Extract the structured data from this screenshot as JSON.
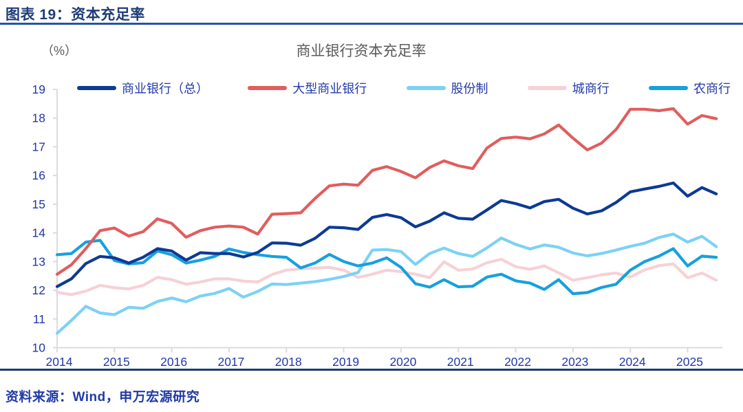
{
  "header": {
    "title": "图表 19：资本充足率"
  },
  "chart": {
    "title": "商业银行资本充足率",
    "unit_label": "（%）"
  },
  "footer": {
    "source": "资料来源：Wind，申万宏源研究"
  },
  "chart_data": {
    "type": "line",
    "title": "商业银行资本充足率",
    "unit": "%",
    "x_freq": "quarterly",
    "legend_position": "top",
    "grid": false,
    "ylim": [
      10,
      19
    ],
    "y_ticks": [
      "10",
      "11",
      "12",
      "13",
      "14",
      "15",
      "16",
      "17",
      "18",
      "19"
    ],
    "x_tick_labels": [
      "2014",
      "2015",
      "2016",
      "2017",
      "2018",
      "2019",
      "2020",
      "2021",
      "2022",
      "2023",
      "2024",
      "2025"
    ],
    "x": [
      "2014Q1",
      "2014Q2",
      "2014Q3",
      "2014Q4",
      "2015Q1",
      "2015Q2",
      "2015Q3",
      "2015Q4",
      "2016Q1",
      "2016Q2",
      "2016Q3",
      "2016Q4",
      "2017Q1",
      "2017Q2",
      "2017Q3",
      "2017Q4",
      "2018Q1",
      "2018Q2",
      "2018Q3",
      "2018Q4",
      "2019Q1",
      "2019Q2",
      "2019Q3",
      "2019Q4",
      "2020Q1",
      "2020Q2",
      "2020Q3",
      "2020Q4",
      "2021Q1",
      "2021Q2",
      "2021Q3",
      "2021Q4",
      "2022Q1",
      "2022Q2",
      "2022Q3",
      "2022Q4",
      "2023Q1",
      "2023Q2",
      "2023Q3",
      "2023Q4",
      "2024Q1",
      "2024Q2",
      "2024Q3",
      "2024Q4",
      "2025Q1",
      "2025Q2",
      "2025Q3"
    ],
    "series": [
      {
        "id": "total",
        "name": "商业银行（总）",
        "color": "#0C3A94",
        "values": [
          12.13,
          12.4,
          12.93,
          13.18,
          13.13,
          12.95,
          13.15,
          13.45,
          13.37,
          13.05,
          13.31,
          13.28,
          13.28,
          13.16,
          13.32,
          13.65,
          13.64,
          13.57,
          13.81,
          14.2,
          14.18,
          14.12,
          14.54,
          14.64,
          14.53,
          14.21,
          14.41,
          14.7,
          14.51,
          14.48,
          14.8,
          15.13,
          15.02,
          14.87,
          15.09,
          15.17,
          14.86,
          14.66,
          14.77,
          15.06,
          15.43,
          15.53,
          15.62,
          15.74,
          15.28,
          15.58,
          15.36
        ]
      },
      {
        "id": "large",
        "name": "大型商业银行",
        "color": "#E15D5D",
        "values": [
          12.56,
          12.89,
          13.45,
          14.08,
          14.17,
          13.89,
          14.04,
          14.49,
          14.33,
          13.85,
          14.08,
          14.2,
          14.24,
          14.2,
          13.96,
          14.65,
          14.67,
          14.7,
          15.2,
          15.64,
          15.7,
          15.66,
          16.18,
          16.31,
          16.14,
          15.92,
          16.28,
          16.51,
          16.34,
          16.24,
          16.96,
          17.29,
          17.34,
          17.28,
          17.45,
          17.76,
          17.3,
          16.89,
          17.13,
          17.6,
          18.31,
          18.31,
          18.26,
          18.33,
          17.79,
          18.09,
          17.98
        ]
      },
      {
        "id": "joint-stock",
        "name": "股份制",
        "color": "#7CD1F5",
        "values": [
          10.5,
          10.95,
          11.44,
          11.21,
          11.15,
          11.41,
          11.37,
          11.61,
          11.73,
          11.6,
          11.8,
          11.89,
          12.06,
          11.76,
          11.96,
          12.22,
          12.2,
          12.25,
          12.3,
          12.38,
          12.48,
          12.62,
          13.4,
          13.42,
          13.35,
          12.9,
          13.28,
          13.47,
          13.28,
          13.18,
          13.48,
          13.82,
          13.6,
          13.44,
          13.58,
          13.5,
          13.3,
          13.2,
          13.28,
          13.4,
          13.53,
          13.64,
          13.84,
          13.96,
          13.68,
          13.88,
          13.52
        ]
      },
      {
        "id": "city",
        "name": "城商行",
        "color": "#F6D1D6",
        "values": [
          11.93,
          11.85,
          11.97,
          12.17,
          12.09,
          12.05,
          12.17,
          12.45,
          12.37,
          12.21,
          12.29,
          12.4,
          12.4,
          12.32,
          12.29,
          12.55,
          12.7,
          12.75,
          12.77,
          12.8,
          12.7,
          12.45,
          12.56,
          12.7,
          12.65,
          12.56,
          12.44,
          12.99,
          12.7,
          12.74,
          12.96,
          13.08,
          12.82,
          12.73,
          12.85,
          12.61,
          12.35,
          12.44,
          12.54,
          12.6,
          12.46,
          12.71,
          12.86,
          12.92,
          12.44,
          12.6,
          12.35
        ]
      },
      {
        "id": "rural",
        "name": "农商行",
        "color": "#17A0DF",
        "values": [
          13.24,
          13.28,
          13.68,
          13.74,
          13.04,
          12.92,
          12.96,
          13.37,
          13.24,
          12.95,
          13.05,
          13.18,
          13.44,
          13.32,
          13.24,
          13.18,
          13.15,
          12.78,
          12.95,
          13.25,
          13.0,
          12.85,
          12.95,
          13.13,
          12.8,
          12.23,
          12.11,
          12.37,
          12.12,
          12.14,
          12.46,
          12.56,
          12.33,
          12.25,
          12.03,
          12.37,
          11.88,
          11.92,
          12.1,
          12.21,
          12.7,
          13.0,
          13.19,
          13.45,
          12.85,
          13.19,
          13.15
        ]
      }
    ]
  }
}
